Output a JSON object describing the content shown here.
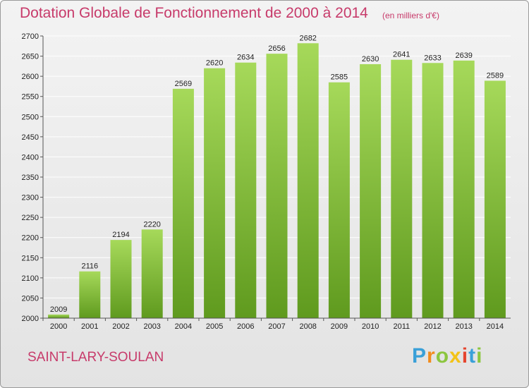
{
  "header": {
    "title": "Dotation Globale de Fonctionnement de 2000 à 2014",
    "unit": "(en milliers d'€)"
  },
  "footer": {
    "commune": "SAINT-LARY-SOULAN",
    "brand": "Proxiti"
  },
  "colors": {
    "bar_top": "#a6d95a",
    "bar_bottom": "#5f9a1e",
    "title": "#c73a6a",
    "grid": "#ffffff"
  },
  "chart_data": {
    "type": "bar",
    "title": "Dotation Globale de Fonctionnement de 2000 à 2014",
    "xlabel": "",
    "ylabel": "",
    "ylim": [
      2000,
      2700
    ],
    "yticks": [
      2000,
      2050,
      2100,
      2150,
      2200,
      2250,
      2300,
      2350,
      2400,
      2450,
      2500,
      2550,
      2600,
      2650,
      2700
    ],
    "grid": true,
    "categories": [
      "2000",
      "2001",
      "2002",
      "2003",
      "2004",
      "2005",
      "2006",
      "2007",
      "2008",
      "2009",
      "2010",
      "2011",
      "2012",
      "2013",
      "2014"
    ],
    "values": [
      2009,
      2116,
      2194,
      2220,
      2569,
      2620,
      2634,
      2656,
      2682,
      2585,
      2630,
      2641,
      2633,
      2639,
      2589
    ]
  }
}
